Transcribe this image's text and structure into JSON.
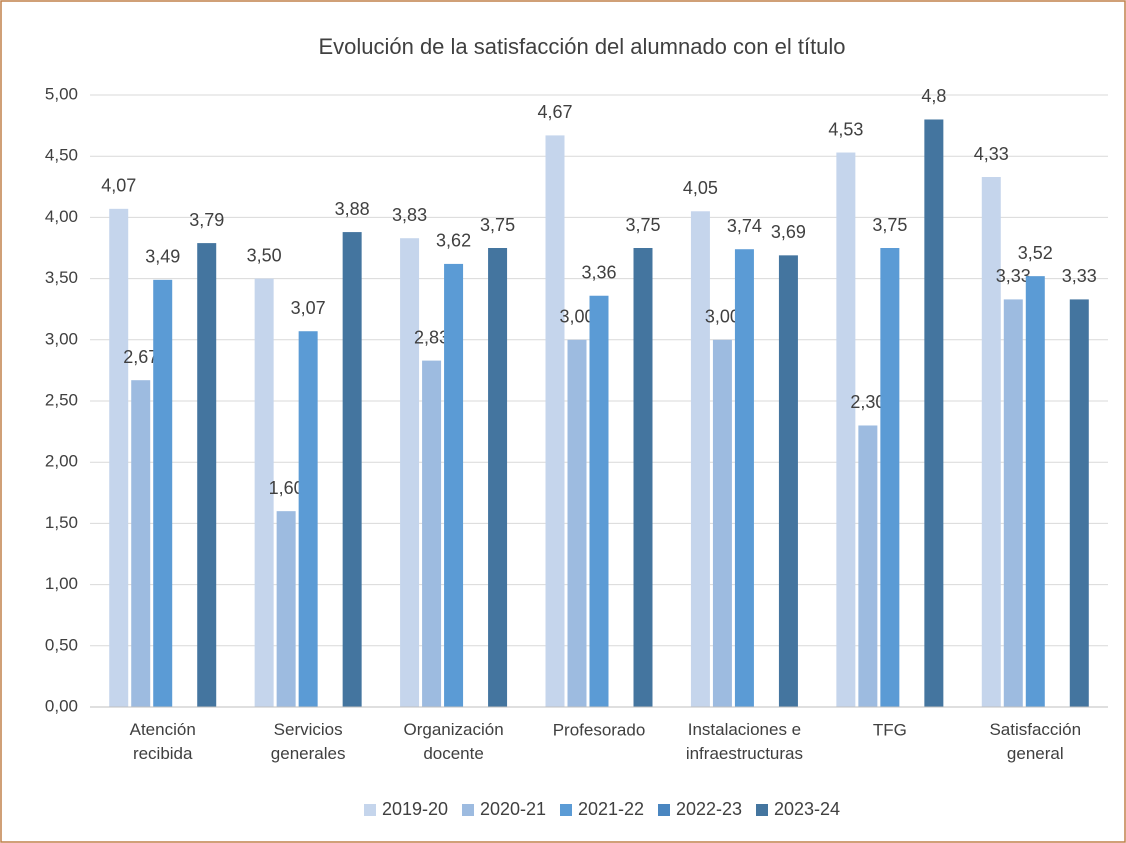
{
  "chart_data": {
    "type": "bar",
    "title": "Evolución de la satisfacción del alumnado con el título",
    "categories": [
      "Atención recibida",
      "Servicios generales",
      "Organización docente",
      "Profesorado",
      "Instalaciones e infraestructuras",
      "TFG",
      "Satisfacción general"
    ],
    "series": [
      {
        "name": "2019-20",
        "color": "#c5d5ec",
        "values": [
          4.07,
          3.5,
          3.83,
          4.67,
          4.05,
          4.53,
          4.33
        ],
        "value_labels": [
          "4,07",
          "3,50",
          "3,83",
          "4,67",
          "4,05",
          "4,53",
          "4,33"
        ]
      },
      {
        "name": "2020-21",
        "color": "#9dbbe0",
        "values": [
          2.67,
          1.6,
          2.83,
          3.0,
          3.0,
          2.3,
          3.33
        ],
        "value_labels": [
          "2,67",
          "1,60",
          "2,83",
          "3,00",
          "3,00",
          "2,30",
          "3,33"
        ]
      },
      {
        "name": "2021-22",
        "color": "#5b9bd5",
        "values": [
          3.49,
          3.07,
          3.62,
          3.36,
          3.74,
          3.75,
          3.52
        ],
        "value_labels": [
          "3,49",
          "3,07",
          "3,62",
          "3,36",
          "3,74",
          "3,75",
          "3,52"
        ]
      },
      {
        "name": "2022-23",
        "color": "#4a86c0",
        "values": [
          null,
          null,
          null,
          null,
          null,
          null,
          null
        ]
      },
      {
        "name": "2023-24",
        "color": "#44759f",
        "values": [
          3.79,
          3.88,
          3.75,
          3.75,
          3.69,
          4.8,
          3.33
        ],
        "value_labels": [
          "3,79",
          "3,88",
          "3,75",
          "3,75",
          "3,69",
          "4,8",
          "3,33"
        ]
      }
    ],
    "ylim": [
      0,
      5
    ],
    "yticks": [
      {
        "value": 0,
        "label": "0,00"
      },
      {
        "value": 0.5,
        "label": "0,50"
      },
      {
        "value": 1,
        "label": "1,00"
      },
      {
        "value": 1.5,
        "label": "1,50"
      },
      {
        "value": 2,
        "label": "2,00"
      },
      {
        "value": 2.5,
        "label": "2,50"
      },
      {
        "value": 3,
        "label": "3,00"
      },
      {
        "value": 3.5,
        "label": "3,50"
      },
      {
        "value": 4,
        "label": "4,00"
      },
      {
        "value": 4.5,
        "label": "4,50"
      },
      {
        "value": 5,
        "label": "5,00"
      }
    ],
    "grid": true,
    "legend": "bottom"
  }
}
